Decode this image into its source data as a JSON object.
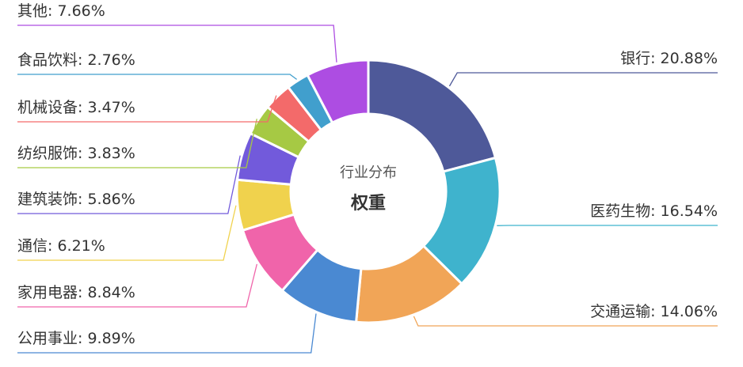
{
  "chart_data": {
    "type": "pie",
    "variant": "donut",
    "center_title": "行业分布",
    "center_subtitle": "权重",
    "series": [
      {
        "name": "银行",
        "value": 20.88,
        "label": "银行: 20.88%",
        "color": "#4e5999"
      },
      {
        "name": "医药生物",
        "value": 16.54,
        "label": "医药生物: 16.54%",
        "color": "#3fb3cd"
      },
      {
        "name": "交通运输",
        "value": 14.06,
        "label": "交通运输: 14.06%",
        "color": "#f1a557"
      },
      {
        "name": "公用事业",
        "value": 9.89,
        "label": "公用事业: 9.89%",
        "color": "#4a89d2"
      },
      {
        "name": "家用电器",
        "value": 8.84,
        "label": "家用电器: 8.84%",
        "color": "#f064aa"
      },
      {
        "name": "通信",
        "value": 6.21,
        "label": "通信: 6.21%",
        "color": "#f0d24d"
      },
      {
        "name": "建筑装饰",
        "value": 5.86,
        "label": "建筑装饰: 5.86%",
        "color": "#725adb"
      },
      {
        "name": "纺织服饰",
        "value": 3.83,
        "label": "纺织服饰: 3.83%",
        "color": "#a6c944"
      },
      {
        "name": "机械设备",
        "value": 3.47,
        "label": "机械设备: 3.47%",
        "color": "#f36a6a"
      },
      {
        "name": "食品饮料",
        "value": 2.76,
        "label": "食品饮料: 2.76%",
        "color": "#419fcd"
      },
      {
        "name": "其他",
        "value": 7.66,
        "label": "其他: 7.66%",
        "color": "#ad4de2"
      }
    ]
  }
}
